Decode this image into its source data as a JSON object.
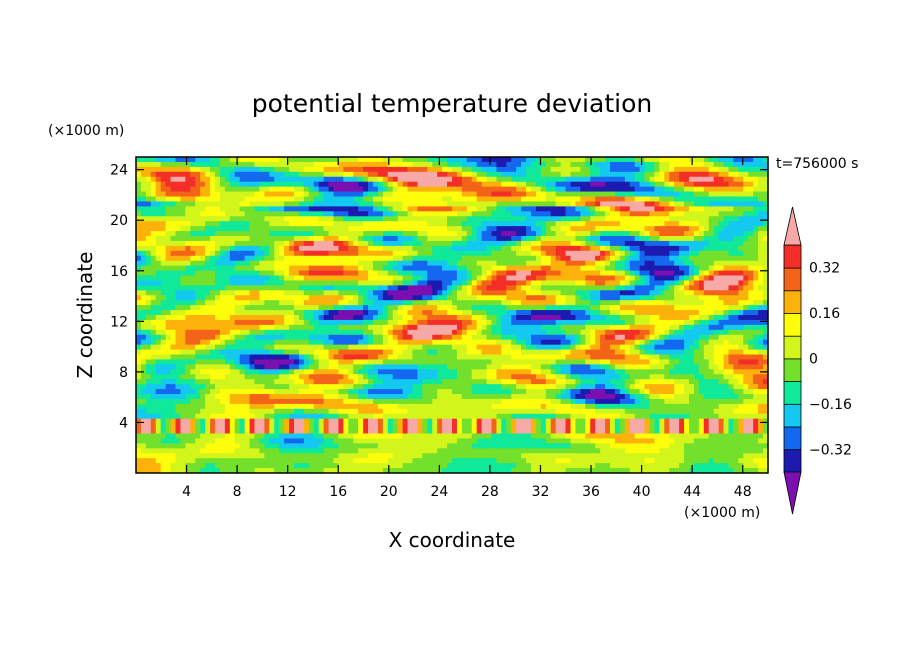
{
  "chart_data": {
    "type": "heatmap",
    "title": "potential temperature deviation",
    "xlabel": "X coordinate",
    "ylabel": "Z coordinate",
    "x_unit": "(×1000 m)",
    "y_unit": "(×1000 m)",
    "time_label": "t=756000 s",
    "xlim": [
      0,
      50
    ],
    "ylim": [
      0,
      25
    ],
    "x_ticks": [
      4,
      8,
      12,
      16,
      20,
      24,
      28,
      32,
      36,
      40,
      44,
      48
    ],
    "y_ticks": [
      4,
      8,
      12,
      16,
      20,
      24
    ],
    "colorbar": {
      "levels": [
        -0.4,
        -0.32,
        -0.24,
        -0.16,
        -0.08,
        0,
        0.08,
        0.16,
        0.24,
        0.32,
        0.4
      ],
      "labels": [
        {
          "value": 0.32,
          "text": "0.32"
        },
        {
          "value": 0.16,
          "text": "0.16"
        },
        {
          "value": 0,
          "text": "0"
        },
        {
          "value": -0.16,
          "text": "−0.16"
        },
        {
          "value": -0.32,
          "text": "−0.32"
        }
      ],
      "colors": [
        "#7b0fb0",
        "#1d1ab0",
        "#1468f0",
        "#13c9f0",
        "#10e89a",
        "#73e02c",
        "#d2f51b",
        "#fdfd0c",
        "#fdb20b",
        "#f36318",
        "#f22e26",
        "#f7a9a7"
      ],
      "extend": "both"
    },
    "grid": false
  }
}
